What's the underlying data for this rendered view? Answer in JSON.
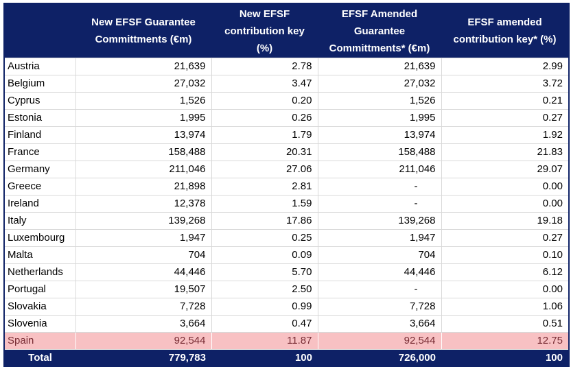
{
  "table": {
    "columns": [
      {
        "label": ""
      },
      {
        "label": "New EFSF Guarantee Committments (€m)"
      },
      {
        "label": "New EFSF contribution key (%)"
      },
      {
        "label": "EFSF Amended Guarantee Committments* (€m)"
      },
      {
        "label": "EFSF amended contribution key* (%)"
      }
    ],
    "rows": [
      [
        "Austria",
        "21,639",
        "2.78",
        "21,639",
        "2.99"
      ],
      [
        "Belgium",
        "27,032",
        "3.47",
        "27,032",
        "3.72"
      ],
      [
        "Cyprus",
        "1,526",
        "0.20",
        "1,526",
        "0.21"
      ],
      [
        "Estonia",
        "1,995",
        "0.26",
        "1,995",
        "0.27"
      ],
      [
        "Finland",
        "13,974",
        "1.79",
        "13,974",
        "1.92"
      ],
      [
        "France",
        "158,488",
        "20.31",
        "158,488",
        "21.83"
      ],
      [
        "Germany",
        "211,046",
        "27.06",
        "211,046",
        "29.07"
      ],
      [
        "Greece",
        "21,898",
        "2.81",
        "-",
        "0.00"
      ],
      [
        "Ireland",
        "12,378",
        "1.59",
        "-",
        "0.00"
      ],
      [
        "Italy",
        "139,268",
        "17.86",
        "139,268",
        "19.18"
      ],
      [
        "Luxembourg",
        "1,947",
        "0.25",
        "1,947",
        "0.27"
      ],
      [
        "Malta",
        "704",
        "0.09",
        "704",
        "0.10"
      ],
      [
        "Netherlands",
        "44,446",
        "5.70",
        "44,446",
        "6.12"
      ],
      [
        "Portugal",
        "19,507",
        "2.50",
        "-",
        "0.00"
      ],
      [
        "Slovakia",
        "7,728",
        "0.99",
        "7,728",
        "1.06"
      ],
      [
        "Slovenia",
        "3,664",
        "0.47",
        "3,664",
        "0.51"
      ],
      [
        "Spain",
        "92,544",
        "11.87",
        "92,544",
        "12.75"
      ]
    ],
    "highlighted_row_index": 16,
    "total_row": [
      "Total",
      "779,783",
      "100",
      "726,000",
      "100"
    ],
    "colors": {
      "header_bg": "#0E2166",
      "header_text": "#FFFFFF",
      "highlight_bg": "#F8C1C3",
      "highlight_text": "#772B33",
      "grid_line": "#D9D9D9",
      "body_text": "#000000"
    }
  }
}
